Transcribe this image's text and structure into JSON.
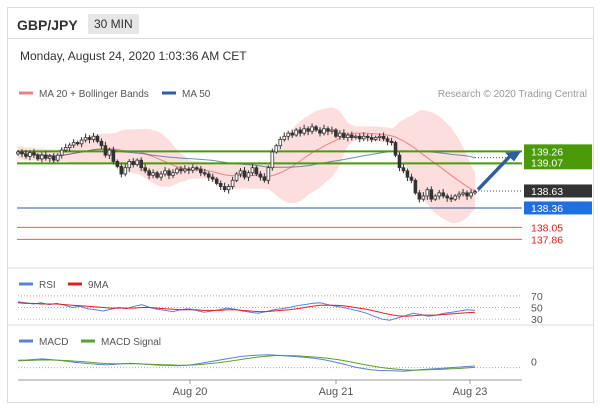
{
  "header": {
    "symbol": "GBP/JPY",
    "timeframe": "30 MIN",
    "datetime": "Monday, August 24, 2020 1:03:36 AM CET"
  },
  "legends": {
    "price": [
      {
        "label": "MA 20 + Bollinger Bands",
        "color": "#f08080"
      },
      {
        "label": "MA 50",
        "color": "#2e5e9e"
      }
    ],
    "rsi": [
      {
        "label": "RSI",
        "color": "#5a80d8"
      },
      {
        "label": "9MA",
        "color": "#e02020"
      }
    ],
    "macd": [
      {
        "label": "MACD",
        "color": "#5a80d8"
      },
      {
        "label": "MACD Signal",
        "color": "#5aa02c"
      }
    ]
  },
  "credit": "Research © 2020 Trading Central",
  "chart_data": [
    {
      "type": "candlestick",
      "panel": "price",
      "x_ticks": [
        "Aug 20",
        "Aug 21",
        "Aug 23"
      ],
      "ylim": [
        137.5,
        139.95
      ],
      "close": [
        139.25,
        139.22,
        139.18,
        139.24,
        139.2,
        139.14,
        139.2,
        139.15,
        139.18,
        139.12,
        139.2,
        139.28,
        139.32,
        139.36,
        139.4,
        139.38,
        139.44,
        139.48,
        139.45,
        139.5,
        139.42,
        139.35,
        139.2,
        139.28,
        139.1,
        139.02,
        138.9,
        139.0,
        139.1,
        139.05,
        139.12,
        139.0,
        138.95,
        138.88,
        138.92,
        138.85,
        138.9,
        138.95,
        138.88,
        138.92,
        138.98,
        138.95,
        138.98,
        138.96,
        139.0,
        138.98,
        138.92,
        138.9,
        138.85,
        138.82,
        138.75,
        138.7,
        138.65,
        138.7,
        138.8,
        138.9,
        138.95,
        138.85,
        138.92,
        139.0,
        138.9,
        138.85,
        138.8,
        139.0,
        139.25,
        139.35,
        139.45,
        139.5,
        139.55,
        139.52,
        139.6,
        139.55,
        139.62,
        139.58,
        139.65,
        139.6,
        139.55,
        139.62,
        139.58,
        139.6,
        139.5,
        139.55,
        139.48,
        139.52,
        139.48,
        139.5,
        139.46,
        139.5,
        139.48,
        139.45,
        139.48,
        139.5,
        139.46,
        139.42,
        139.4,
        139.2,
        139.0,
        138.95,
        138.85,
        138.8,
        138.6,
        138.5,
        138.55,
        138.65,
        138.5,
        138.55,
        138.6,
        138.55,
        138.52,
        138.5,
        138.55,
        138.58,
        138.6,
        138.55,
        138.6,
        138.62
      ],
      "horizontal_levels": [
        {
          "value": "139.26",
          "color": "#4a9a0a",
          "style": "support-resistance"
        },
        {
          "value": "139.07",
          "color": "#4a9a0a",
          "style": "support-resistance"
        },
        {
          "value": "138.63",
          "color": "#333333",
          "style": "last-price"
        },
        {
          "value": "138.36",
          "color": "#2e5e9e",
          "style": "pivot"
        },
        {
          "value": "138.05",
          "color": "#e02020",
          "style": "support"
        },
        {
          "value": "137.86",
          "color": "#e02020",
          "style": "support"
        }
      ]
    },
    {
      "type": "line",
      "panel": "rsi",
      "y_ticks": [
        "70",
        "50",
        "30"
      ],
      "ylim": [
        20,
        80
      ],
      "series": [
        {
          "name": "RSI",
          "values": [
            60,
            58,
            56,
            58,
            55,
            57,
            54,
            50,
            52,
            48,
            46,
            44,
            47,
            50,
            48,
            52,
            55,
            50,
            47,
            45,
            43,
            46,
            48,
            45,
            42,
            44,
            46,
            49,
            47,
            44,
            42,
            40,
            43,
            46,
            48,
            50,
            53,
            55,
            57,
            58,
            55,
            52,
            50,
            47,
            44,
            40,
            35,
            30,
            28,
            32,
            36,
            40,
            38,
            35,
            37,
            40,
            42,
            44,
            46,
            45
          ]
        },
        {
          "name": "9MA",
          "values": [
            58,
            57,
            57,
            56,
            56,
            56,
            55,
            54,
            53,
            52,
            51,
            50,
            49,
            49,
            49,
            49,
            50,
            50,
            49,
            48,
            47,
            46,
            46,
            46,
            45,
            45,
            45,
            46,
            46,
            45,
            44,
            43,
            43,
            44,
            45,
            46,
            48,
            50,
            52,
            54,
            54,
            54,
            53,
            51,
            49,
            47,
            44,
            41,
            38,
            36,
            35,
            36,
            37,
            37,
            37,
            38,
            39,
            40,
            41,
            42
          ]
        }
      ]
    },
    {
      "type": "line",
      "panel": "macd",
      "y_ticks": [
        "0"
      ],
      "ylim": [
        -0.6,
        0.5
      ],
      "series": [
        {
          "name": "MACD",
          "values": [
            0.05,
            0.06,
            0.08,
            0.1,
            0.08,
            0.05,
            0.02,
            -0.02,
            -0.05,
            -0.08,
            -0.1,
            -0.12,
            -0.1,
            -0.08,
            -0.06,
            -0.08,
            -0.1,
            -0.12,
            -0.13,
            -0.14,
            -0.15,
            -0.13,
            -0.1,
            -0.05,
            0.0,
            0.05,
            0.1,
            0.15,
            0.2,
            0.22,
            0.24,
            0.25,
            0.24,
            0.22,
            0.2,
            0.18,
            0.15,
            0.12,
            0.08,
            0.02,
            -0.05,
            -0.12,
            -0.2,
            -0.25,
            -0.3,
            -0.32,
            -0.33,
            -0.34,
            -0.35,
            -0.33,
            -0.3,
            -0.28,
            -0.26,
            -0.24,
            -0.22,
            -0.2,
            -0.18,
            -0.16
          ]
        },
        {
          "name": "MACD Signal",
          "values": [
            0.03,
            0.04,
            0.05,
            0.06,
            0.06,
            0.05,
            0.04,
            0.02,
            0.0,
            -0.02,
            -0.05,
            -0.07,
            -0.08,
            -0.08,
            -0.08,
            -0.08,
            -0.09,
            -0.1,
            -0.11,
            -0.12,
            -0.13,
            -0.13,
            -0.12,
            -0.1,
            -0.07,
            -0.04,
            0.0,
            0.04,
            0.09,
            0.13,
            0.17,
            0.2,
            0.22,
            0.22,
            0.22,
            0.21,
            0.19,
            0.17,
            0.14,
            0.11,
            0.07,
            0.02,
            -0.04,
            -0.1,
            -0.15,
            -0.2,
            -0.24,
            -0.27,
            -0.3,
            -0.31,
            -0.31,
            -0.3,
            -0.29,
            -0.28,
            -0.26,
            -0.25,
            -0.23,
            -0.21
          ]
        }
      ]
    }
  ]
}
